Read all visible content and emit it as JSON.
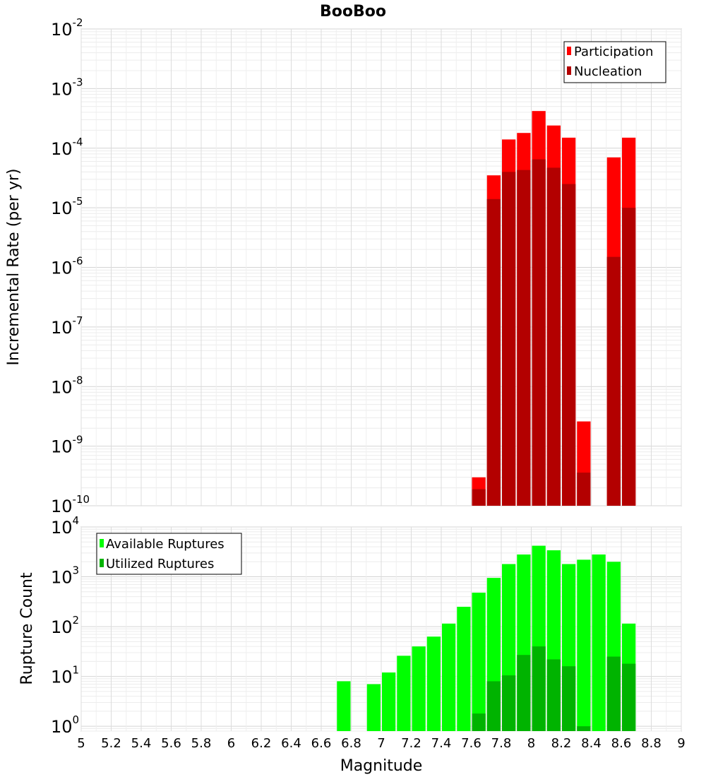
{
  "chart_data": [
    {
      "type": "bar",
      "title": "BooBoo",
      "xlabel": "Magnitude",
      "ylabel": "Incremental Rate (per yr)",
      "yscale": "log",
      "xlim": [
        5,
        9
      ],
      "ylim": [
        1e-10,
        0.01
      ],
      "ytick_exponents": [
        -2,
        -3,
        -4,
        -5,
        -6,
        -7,
        -8,
        -9,
        -10
      ],
      "grid": true,
      "legend_position": "top-right",
      "bin_width": 0.1,
      "x": [
        7.65,
        7.75,
        7.85,
        7.95,
        8.05,
        8.15,
        8.25,
        8.35,
        8.55,
        8.65
      ],
      "series": [
        {
          "name": "Participation",
          "color": "#ff0000",
          "values": [
            3e-10,
            3.5e-05,
            0.00014,
            0.00018,
            0.00042,
            0.00024,
            0.00015,
            2.6e-09,
            7e-05,
            0.00015
          ]
        },
        {
          "name": "Nucleation",
          "color": "#b30000",
          "values": [
            1.9e-10,
            1.4e-05,
            4e-05,
            4.3e-05,
            6.5e-05,
            4.7e-05,
            2.5e-05,
            3.6e-10,
            1.5e-06,
            1e-05
          ]
        }
      ]
    },
    {
      "type": "bar",
      "title": "",
      "xlabel": "Magnitude",
      "ylabel": "Rupture Count",
      "yscale": "log",
      "xlim": [
        5,
        9
      ],
      "ylim": [
        0.8,
        10000.0
      ],
      "ytick_exponents": [
        4,
        3,
        2,
        1,
        0
      ],
      "grid": true,
      "legend_position": "top-left",
      "bin_width": 0.1,
      "xticks": [
        "5",
        "5.2",
        "5.4",
        "5.6",
        "5.8",
        "6",
        "6.2",
        "6.4",
        "6.6",
        "6.8",
        "7",
        "7.2",
        "7.4",
        "7.6",
        "7.8",
        "8",
        "8.2",
        "8.4",
        "8.6",
        "8.8",
        "9"
      ],
      "x": [
        6.75,
        6.95,
        7.05,
        7.15,
        7.25,
        7.35,
        7.45,
        7.55,
        7.65,
        7.75,
        7.85,
        7.95,
        8.05,
        8.15,
        8.25,
        8.35,
        8.45,
        8.55,
        8.65
      ],
      "series": [
        {
          "name": "Available Ruptures",
          "color": "#00ff00",
          "values": [
            8,
            7,
            12,
            26,
            40,
            63,
            115,
            250,
            480,
            950,
            1800,
            2800,
            4200,
            3400,
            1800,
            2200,
            2800,
            2000,
            115
          ]
        },
        {
          "name": "Utilized Ruptures",
          "color": "#00b300",
          "values": [
            0,
            0,
            0,
            0,
            0,
            0,
            0,
            0,
            1.8,
            8,
            10.5,
            27,
            40,
            22,
            16,
            1,
            0,
            25,
            18
          ]
        }
      ]
    }
  ]
}
